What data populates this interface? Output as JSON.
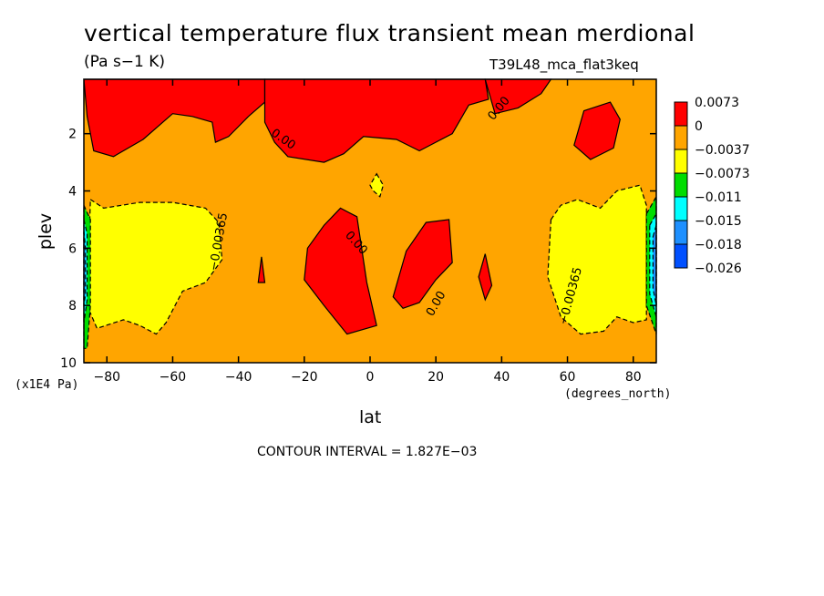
{
  "header": {
    "title": "vertical temperature flux transient mean merdional",
    "units": "(Pa s−1 K)",
    "experiment": "T39L48_mca_flat3keq"
  },
  "footer": {
    "contour_interval": "CONTOUR INTERVAL = 1.827E−03"
  },
  "chart_data": {
    "type": "heatmap",
    "xlabel": "lat",
    "xunit": "(degrees_north)",
    "ylabel": "plev",
    "yunit": "(x1E4 Pa)",
    "xlim": [
      -87,
      87
    ],
    "ylim": [
      10,
      0.1
    ],
    "x_ticks": [
      -80,
      -60,
      -40,
      -20,
      0,
      20,
      40,
      60,
      80
    ],
    "x_tick_labels": [
      "−80",
      "−60",
      "−40",
      "−20",
      "0",
      "20",
      "40",
      "60",
      "80"
    ],
    "y_ticks": [
      2,
      4,
      6,
      8,
      10
    ],
    "y_tick_labels": [
      "2",
      "4",
      "6",
      "8",
      "10"
    ],
    "background_level": "-0.0037 to 0",
    "legend": {
      "placement": "right",
      "labels": [
        "0.0073",
        "0",
        "−0.0037",
        "−0.0073",
        "−0.011",
        "−0.015",
        "−0.018",
        "−0.026"
      ],
      "colors": [
        "#ff0000",
        "#ffa500",
        "#ffff00",
        "#00dd00",
        "#00ffff",
        "#1e90ff",
        "#0050ff"
      ]
    },
    "contour_labels": [
      {
        "text": "0.00",
        "lat": 40,
        "plev": 1.2,
        "angle": -50
      },
      {
        "text": "0.00",
        "lat": -27,
        "plev": 2.3,
        "angle": 35
      },
      {
        "text": "−0.00365",
        "lat": -45,
        "plev": 5.8,
        "angle": -80
      },
      {
        "text": "0.00",
        "lat": -5,
        "plev": 5.9,
        "angle": 48
      },
      {
        "text": "0.00",
        "lat": 21,
        "plev": 8.0,
        "angle": -60
      },
      {
        "text": "−0.00365",
        "lat": 62,
        "plev": 7.7,
        "angle": -75
      }
    ],
    "regions": [
      {
        "level": "0 to 0.0073",
        "color": "#ff0000",
        "points": [
          [
            -87,
            0.1
          ],
          [
            -32,
            0.1
          ],
          [
            -32,
            0.9
          ],
          [
            -37,
            1.4
          ],
          [
            -43,
            2.1
          ],
          [
            -47,
            2.3
          ],
          [
            -48,
            1.6
          ],
          [
            -54,
            1.4
          ],
          [
            -60,
            1.3
          ],
          [
            -69,
            2.2
          ],
          [
            -78,
            2.8
          ],
          [
            -84,
            2.6
          ],
          [
            -86,
            1.4
          ]
        ]
      },
      {
        "level": "0 to 0.0073",
        "color": "#ff0000",
        "points": [
          [
            -32,
            0.1
          ],
          [
            35,
            0.1
          ],
          [
            36,
            0.8
          ],
          [
            30,
            1.0
          ],
          [
            25,
            2.0
          ],
          [
            15,
            2.6
          ],
          [
            8,
            2.2
          ],
          [
            -2,
            2.1
          ],
          [
            -8,
            2.7
          ],
          [
            -14,
            3.0
          ],
          [
            -25,
            2.8
          ],
          [
            -29,
            2.3
          ],
          [
            -32,
            1.6
          ]
        ]
      },
      {
        "level": "0 to 0.0073",
        "color": "#ff0000",
        "points": [
          [
            35,
            0.1
          ],
          [
            55,
            0.1
          ],
          [
            52,
            0.6
          ],
          [
            45,
            1.1
          ],
          [
            38,
            1.3
          ]
        ]
      },
      {
        "level": "0 to 0.0073",
        "color": "#ff0000",
        "points": [
          [
            65,
            1.2
          ],
          [
            73,
            0.9
          ],
          [
            76,
            1.5
          ],
          [
            74,
            2.5
          ],
          [
            67,
            2.9
          ],
          [
            62,
            2.4
          ]
        ]
      },
      {
        "level": "0 to 0.0073",
        "color": "#ff0000",
        "points": [
          [
            -19,
            6.0
          ],
          [
            -14,
            5.2
          ],
          [
            -9,
            4.6
          ],
          [
            -4,
            4.9
          ],
          [
            -1,
            7.2
          ],
          [
            2,
            8.7
          ],
          [
            -7,
            9.0
          ],
          [
            -14,
            8.0
          ],
          [
            -20,
            7.1
          ]
        ]
      },
      {
        "level": "0 to 0.0073",
        "color": "#ff0000",
        "points": [
          [
            7,
            7.7
          ],
          [
            11,
            6.1
          ],
          [
            17,
            5.1
          ],
          [
            24,
            5.0
          ],
          [
            25,
            6.5
          ],
          [
            20,
            7.1
          ],
          [
            15,
            7.9
          ],
          [
            10,
            8.1
          ]
        ]
      },
      {
        "level": "0 to 0.0073",
        "color": "#ff0000",
        "points": [
          [
            -34,
            7.2
          ],
          [
            -33,
            6.3
          ],
          [
            -32,
            7.2
          ]
        ]
      },
      {
        "level": "0 to 0.0073",
        "color": "#ff0000",
        "points": [
          [
            33,
            7.0
          ],
          [
            35,
            6.2
          ],
          [
            37,
            7.3
          ],
          [
            35,
            7.8
          ]
        ]
      },
      {
        "level": "-0.0073 to -0.0037",
        "color": "#ffff00",
        "points": [
          [
            -85,
            4.3
          ],
          [
            -81,
            4.6
          ],
          [
            -70,
            4.4
          ],
          [
            -60,
            4.4
          ],
          [
            -50,
            4.6
          ],
          [
            -46,
            5.1
          ],
          [
            -45,
            6.4
          ],
          [
            -50,
            7.2
          ],
          [
            -57,
            7.5
          ],
          [
            -62,
            8.6
          ],
          [
            -65,
            9.0
          ],
          [
            -70,
            8.7
          ],
          [
            -75,
            8.5
          ],
          [
            -83,
            8.8
          ],
          [
            -86,
            8.0
          ]
        ]
      },
      {
        "level": "-0.0073 to -0.0037",
        "color": "#ffff00",
        "points": [
          [
            2,
            3.4
          ],
          [
            4,
            3.8
          ],
          [
            3,
            4.2
          ],
          [
            1,
            4.0
          ],
          [
            0,
            3.8
          ]
        ]
      },
      {
        "level": "-0.0073 to -0.0037",
        "color": "#ffff00",
        "points": [
          [
            55,
            5.0
          ],
          [
            58,
            4.5
          ],
          [
            63,
            4.3
          ],
          [
            70,
            4.6
          ],
          [
            75,
            4.0
          ],
          [
            82,
            3.8
          ],
          [
            84,
            4.5
          ],
          [
            84,
            8.5
          ],
          [
            80,
            8.6
          ],
          [
            75,
            8.4
          ],
          [
            71,
            8.9
          ],
          [
            64,
            9.0
          ],
          [
            58,
            8.4
          ],
          [
            54,
            7.0
          ]
        ]
      },
      {
        "level": "-0.011 to -0.0073",
        "color": "#00dd00",
        "points": [
          [
            -87,
            4.5
          ],
          [
            -85,
            5.0
          ],
          [
            -85,
            8.0
          ],
          [
            -86,
            9.5
          ],
          [
            -87,
            9.5
          ]
        ]
      },
      {
        "level": "-0.011 to -0.0073",
        "color": "#00dd00",
        "points": [
          [
            84,
            4.8
          ],
          [
            87,
            4.2
          ],
          [
            87,
            9.0
          ],
          [
            84,
            8.0
          ]
        ]
      },
      {
        "level": "-0.015 to -0.011",
        "color": "#00ffff",
        "points": [
          [
            -87,
            5.0
          ],
          [
            -86,
            5.5
          ],
          [
            -86,
            7.8
          ],
          [
            -87,
            8.6
          ]
        ]
      },
      {
        "level": "-0.015 to -0.011",
        "color": "#00ffff",
        "points": [
          [
            85,
            5.2
          ],
          [
            87,
            4.8
          ],
          [
            87,
            8.4
          ],
          [
            85,
            7.6
          ]
        ]
      },
      {
        "level": "-0.018 to -0.015",
        "color": "#1e90ff",
        "points": [
          [
            -87,
            5.4
          ],
          [
            -86.5,
            6.0
          ],
          [
            -86.5,
            7.6
          ],
          [
            -87,
            8.0
          ]
        ]
      },
      {
        "level": "-0.018 to -0.015",
        "color": "#1e90ff",
        "points": [
          [
            86,
            5.6
          ],
          [
            87,
            5.2
          ],
          [
            87,
            8.0
          ],
          [
            86,
            7.4
          ]
        ]
      }
    ]
  }
}
